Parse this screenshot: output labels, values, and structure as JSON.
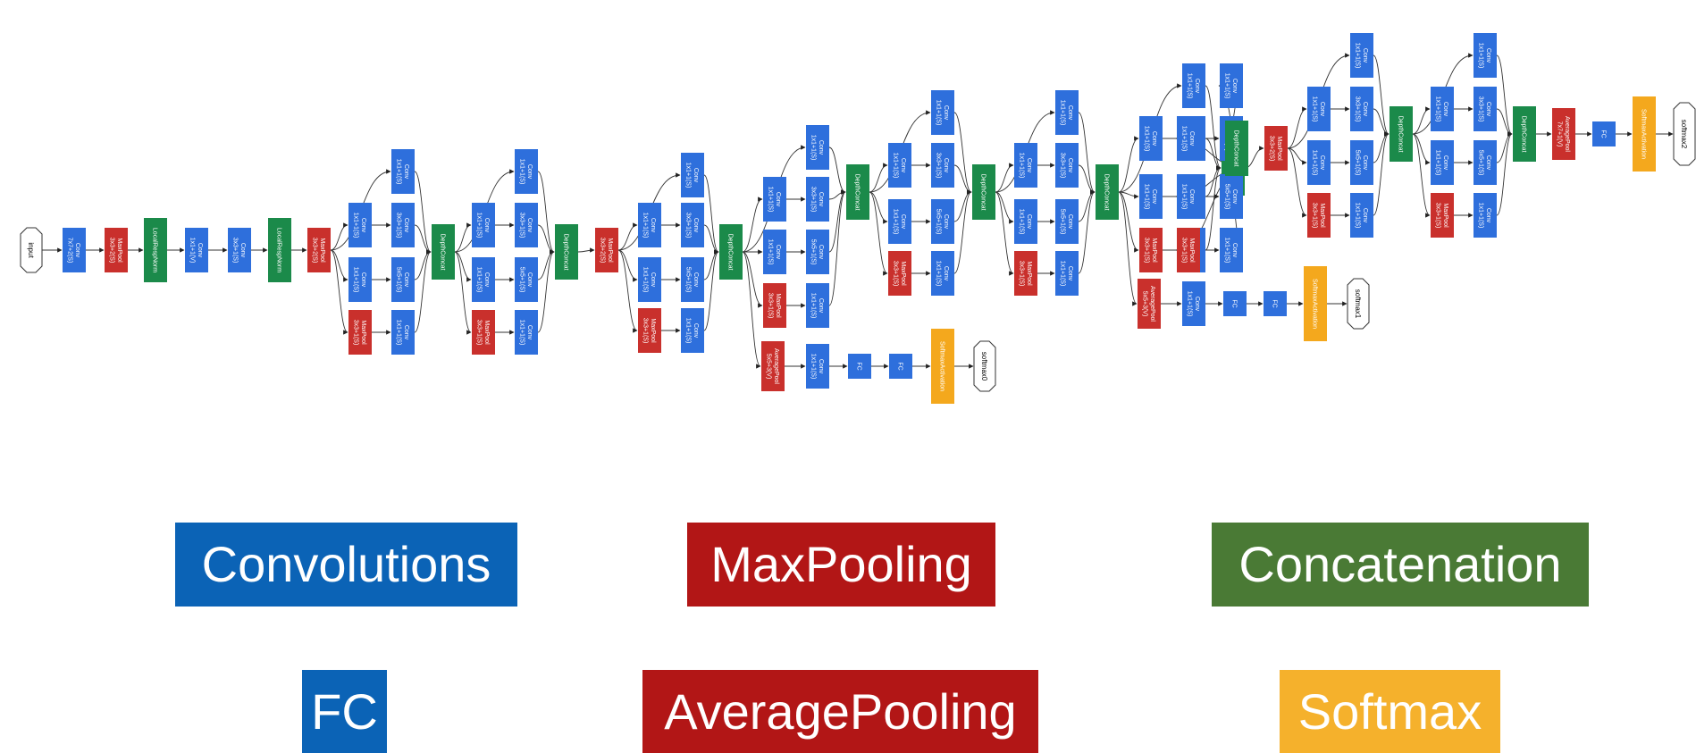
{
  "colors": {
    "conv": "#2e6fdc",
    "maxpool": "#c9302c",
    "concat": "#1b8a4a",
    "softmax": "#f4a81d",
    "legend_blue": "#0b63b6",
    "legend_red": "#b21616",
    "legend_green": "#4a7a35",
    "legend_orange": "#f5b12c"
  },
  "nodes": {
    "input": "input",
    "softmax0": "softmax0",
    "softmax1": "softmax1",
    "softmax2": "softmax2",
    "depthconcat": "DepthConcat",
    "local_resp_norm": "LocalRespNorm",
    "fc": "FC",
    "softmax_activation": "SoftmaxActivation",
    "conv": "Conv",
    "maxpool": "MaxPool",
    "avgpool": "AveragePool",
    "k7x7_2s": "7x7+2(S)",
    "k3x3_2s": "3x3+2(S)",
    "k1x1_1v": "1x1+1(V)",
    "k3x3_1s": "3x3+1(S)",
    "k1x1_1s": "1x1+1(S)",
    "k5x5_1s": "5x5+1(S)",
    "k5x5_3v": "5x5+3(V)",
    "k7x7_1v": "7x7+1(V)"
  },
  "legend": {
    "convolutions": "Convolutions",
    "maxpooling": "MaxPooling",
    "concatenation": "Concatenation",
    "fc": "FC",
    "averagepooling": "AveragePooling",
    "softmax": "Softmax"
  }
}
